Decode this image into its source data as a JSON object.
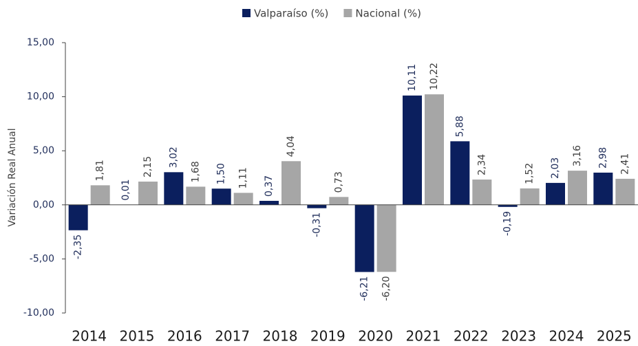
{
  "chart_data": {
    "type": "bar",
    "categories": [
      "2014",
      "2015",
      "2016",
      "2017",
      "2018",
      "2019",
      "2020",
      "2021",
      "2022",
      "2023",
      "2024",
      "2025"
    ],
    "series": [
      {
        "name": "Valparaíso (%)",
        "color": "#0b1f5e",
        "values": [
          -2.35,
          0.01,
          3.02,
          1.5,
          0.37,
          -0.31,
          -6.21,
          10.11,
          5.88,
          -0.19,
          2.03,
          2.98
        ],
        "value_labels": [
          "-2,35",
          "0,01",
          "3,02",
          "1,50",
          "0,37",
          "-0,31",
          "-6,21",
          "10,11",
          "5,88",
          "-0,19",
          "2,03",
          "2,98"
        ]
      },
      {
        "name": "Nacional (%)",
        "color": "#a6a6a6",
        "values": [
          1.81,
          2.15,
          1.68,
          1.11,
          4.04,
          0.73,
          -6.2,
          10.22,
          2.34,
          1.52,
          3.16,
          2.41
        ],
        "value_labels": [
          "1,81",
          "2,15",
          "1,68",
          "1,11",
          "4,04",
          "0,73",
          "-6,20",
          "10,22",
          "2,34",
          "1,52",
          "3,16",
          "2,41"
        ]
      }
    ],
    "y_label": "Variación Real Anual",
    "ylim": [
      -10,
      15
    ],
    "yticks": [
      {
        "value": -10,
        "label": "-10,00"
      },
      {
        "value": -5,
        "label": "-5,00"
      },
      {
        "value": 0,
        "label": "0,00"
      },
      {
        "value": 5,
        "label": "5,00"
      },
      {
        "value": 10,
        "label": "10,00"
      },
      {
        "value": 15,
        "label": "15,00"
      }
    ],
    "grid": false,
    "legend": "top"
  }
}
